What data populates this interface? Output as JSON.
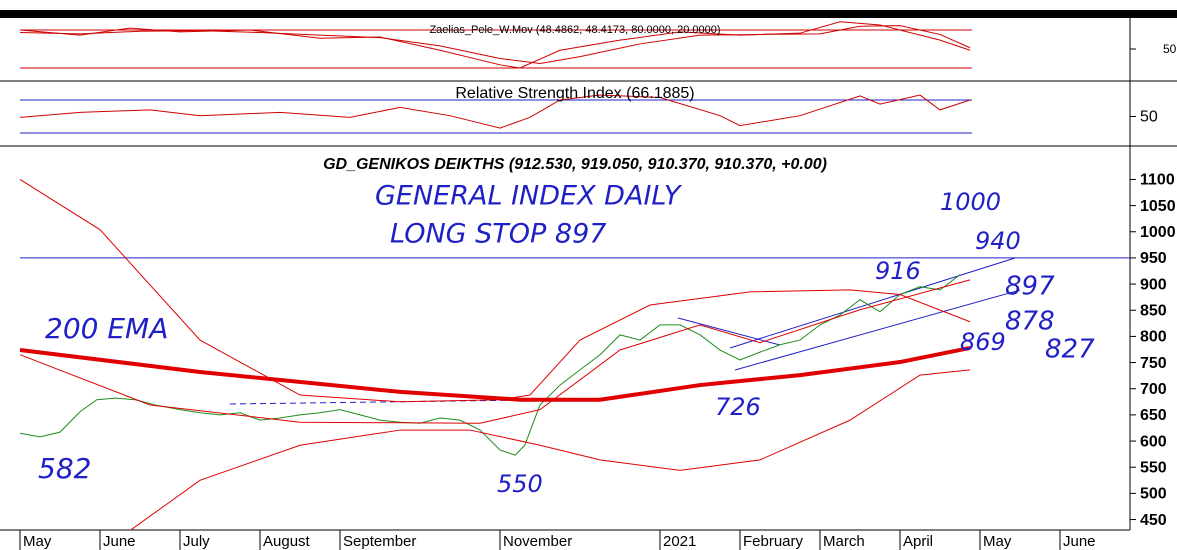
{
  "chart_data": [
    {
      "type": "line",
      "title": "Zaelias_Pele_W.Mov (48.4862, 48.4173, 80.0000, 20.0000)",
      "series": [
        {
          "color": "#d00000",
          "x": [
            0,
            0.75,
            1.375,
            2,
            2.875,
            3.75,
            4.5,
            5.25,
            6,
            6.25,
            6.75,
            7.5,
            8.25,
            9,
            9.75,
            10.25,
            10.75,
            11.5,
            11.875
          ],
          "values": [
            80,
            72,
            83,
            77,
            80,
            67,
            69,
            48,
            25,
            20,
            48,
            64,
            77,
            72,
            75,
            93,
            88,
            64,
            48
          ]
        },
        {
          "color": "#d00000",
          "x": [
            0,
            0.75,
            1.5,
            2.25,
            3,
            3.75,
            4.5,
            5.25,
            6,
            6.5,
            7,
            7.75,
            8.5,
            9.25,
            10,
            10.5,
            11,
            11.5,
            11.875
          ],
          "values": [
            76,
            74,
            78,
            79,
            76,
            72,
            68,
            55,
            35,
            27,
            38,
            58,
            72,
            73,
            74,
            86,
            87,
            73,
            52
          ]
        }
      ],
      "levels": [
        80,
        20
      ],
      "ylim": [
        1,
        99
      ],
      "yticks": [
        50
      ]
    },
    {
      "type": "line",
      "title": "Relative Strength Index (66.1885)",
      "series": [
        {
          "color": "#d00000",
          "x": [
            0,
            0.75,
            1.625,
            2.25,
            3.25,
            4.125,
            4.75,
            5.375,
            6,
            6.375,
            6.75,
            7.25,
            8,
            8.75,
            9,
            9.75,
            10.5,
            10.75,
            11.25,
            11.5,
            11.875
          ],
          "values": [
            49,
            55,
            58,
            51,
            55,
            49,
            61,
            51,
            36,
            49,
            70,
            76,
            73,
            51,
            39,
            51,
            75,
            65,
            76,
            58,
            70
          ]
        }
      ],
      "levels": [
        70,
        30
      ],
      "ylim": [
        15.5,
        91.8
      ],
      "yticks": [
        50
      ]
    },
    {
      "type": "line",
      "title": "GD_GENIKOS DEIKTHS (912.530, 919.050, 910.370, 910.370, +0.00)",
      "series": [
        {
          "color": "#1e8c1e",
          "x": [
            0,
            0.25,
            0.5,
            0.75,
            0.96,
            1.19,
            1.44,
            1.69,
            2,
            2.25,
            2.5,
            2.75,
            3,
            3.25,
            3.5,
            3.75,
            4,
            4.25,
            4.5,
            4.75,
            5,
            5.25,
            5.5,
            5.75,
            6,
            6.19,
            6.31,
            6.5,
            6.75,
            7,
            7.25,
            7.5,
            7.75,
            8,
            8.25,
            8.5,
            8.75,
            9,
            9.25,
            9.5,
            9.75,
            10,
            10.25,
            10.5,
            10.75,
            11,
            11.25,
            11.5,
            11.75
          ],
          "values": [
            615,
            608,
            617,
            656,
            679,
            682,
            679,
            669,
            660,
            654,
            650,
            654,
            640,
            644,
            650,
            654,
            660,
            650,
            640,
            636,
            634,
            644,
            640,
            621,
            583,
            573,
            592,
            669,
            707,
            736,
            765,
            803,
            793,
            822,
            822,
            803,
            774,
            755,
            770,
            784,
            793,
            822,
            841,
            870,
            847,
            880,
            895,
            889,
            918
          ]
        },
        {
          "color": "#e00000",
          "width": 4,
          "x": [
            0,
            2.25,
            4.75,
            6.25,
            7.25,
            8.5,
            9.75,
            11,
            11.875
          ],
          "values": [
            774,
            732,
            694,
            679,
            679,
            707,
            726,
            751,
            778
          ]
        },
        {
          "color": "#e00000",
          "x": [
            0,
            1,
            2.25,
            3.5,
            4.75,
            6,
            6.375,
            7,
            7.875,
            9.125,
            10.375,
            11,
            11.875
          ],
          "values": [
            1100,
            1004,
            793,
            688,
            675,
            679,
            688,
            793,
            860,
            885,
            889,
            880,
            828
          ]
        },
        {
          "color": "#e00000",
          "x": [
            0,
            1.625,
            3.5,
            5.75,
            6.5,
            7.5,
            8.5,
            9.25,
            10.5,
            11.875
          ],
          "values": [
            765,
            669,
            636,
            634,
            660,
            774,
            822,
            788,
            851,
            908
          ]
        },
        {
          "color": "#e00000",
          "x": [
            1.375,
            2.25,
            3.5,
            4.75,
            5.625,
            6.5,
            7.25,
            8.25,
            9.25,
            10.375,
            11.25,
            11.875
          ],
          "values": [
            429,
            525,
            592,
            621,
            621,
            592,
            564,
            544,
            564,
            640,
            726,
            736
          ]
        }
      ],
      "levels": [
        950
      ],
      "ylim": [
        430,
        1162
      ],
      "yticks": [
        1100,
        1050,
        1000,
        950,
        900,
        850,
        800,
        750,
        700,
        650,
        600,
        550,
        500,
        450
      ],
      "xlim": [
        0,
        13.875
      ],
      "xticks": [
        {
          "value": 0,
          "label": "May"
        },
        {
          "value": 1,
          "label": "June"
        },
        {
          "value": 2,
          "label": "July"
        },
        {
          "value": 3,
          "label": "August"
        },
        {
          "value": 4,
          "label": "September"
        },
        {
          "value": 6,
          "label": "November"
        },
        {
          "value": 8,
          "label": "2021"
        },
        {
          "value": 9,
          "label": "February"
        },
        {
          "value": 10,
          "label": "March"
        },
        {
          "value": 11,
          "label": "April"
        },
        {
          "value": 12,
          "label": "May"
        },
        {
          "value": 13,
          "label": "June"
        }
      ],
      "annotations": [
        "GENERAL INDEX DAILY",
        "LONG STOP 897",
        "1000",
        "940",
        "916",
        "897",
        "878",
        "869",
        "827",
        "200 EMA",
        "582",
        "550",
        "726"
      ]
    }
  ]
}
